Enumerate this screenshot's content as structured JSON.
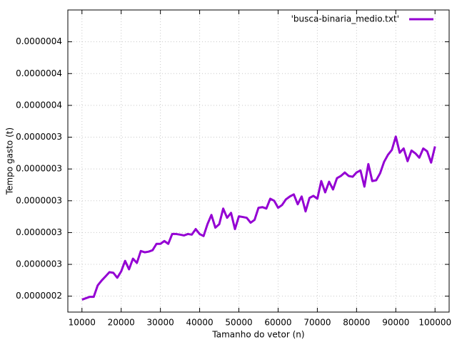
{
  "chart_data": {
    "type": "line",
    "xlabel": "Tamanho do vetor (n)",
    "ylabel": "Tempo gasto (t)",
    "x": [
      10000,
      11000,
      12000,
      13000,
      14000,
      15000,
      16000,
      17000,
      18000,
      19000,
      20000,
      21000,
      22000,
      23000,
      24000,
      25000,
      26000,
      27000,
      28000,
      29000,
      30000,
      31000,
      32000,
      33000,
      34000,
      35000,
      36000,
      37000,
      38000,
      39000,
      40000,
      41000,
      42000,
      43000,
      44000,
      45000,
      46000,
      47000,
      48000,
      49000,
      50000,
      51000,
      52000,
      53000,
      54000,
      55000,
      56000,
      57000,
      58000,
      59000,
      60000,
      61000,
      62000,
      63000,
      64000,
      65000,
      66000,
      67000,
      68000,
      69000,
      70000,
      71000,
      72000,
      73000,
      74000,
      75000,
      76000,
      77000,
      78000,
      79000,
      80000,
      81000,
      82000,
      83000,
      84000,
      85000,
      86000,
      87000,
      88000,
      89000,
      90000,
      91000,
      92000,
      93000,
      94000,
      95000,
      96000,
      97000,
      98000,
      99000,
      100000
    ],
    "series": [
      {
        "name": "'busca-binaria_medio.txt'",
        "color": "#9400d3",
        "values": [
          2.378e-07,
          2.387e-07,
          2.396e-07,
          2.396e-07,
          2.467e-07,
          2.498e-07,
          2.524e-07,
          2.551e-07,
          2.547e-07,
          2.516e-07,
          2.556e-07,
          2.622e-07,
          2.569e-07,
          2.636e-07,
          2.609e-07,
          2.684e-07,
          2.676e-07,
          2.68e-07,
          2.689e-07,
          2.729e-07,
          2.729e-07,
          2.747e-07,
          2.729e-07,
          2.791e-07,
          2.791e-07,
          2.787e-07,
          2.782e-07,
          2.791e-07,
          2.787e-07,
          2.822e-07,
          2.791e-07,
          2.778e-07,
          2.853e-07,
          2.911e-07,
          2.831e-07,
          2.853e-07,
          2.951e-07,
          2.893e-07,
          2.924e-07,
          2.822e-07,
          2.902e-07,
          2.898e-07,
          2.893e-07,
          2.862e-07,
          2.88e-07,
          2.956e-07,
          2.96e-07,
          2.951e-07,
          3.013e-07,
          3e-07,
          2.956e-07,
          2.973e-07,
          3.009e-07,
          3.027e-07,
          3.04e-07,
          2.978e-07,
          3.027e-07,
          2.933e-07,
          3.018e-07,
          3.031e-07,
          3.013e-07,
          3.124e-07,
          3.053e-07,
          3.12e-07,
          3.071e-07,
          3.142e-07,
          3.156e-07,
          3.178e-07,
          3.156e-07,
          3.151e-07,
          3.178e-07,
          3.191e-07,
          3.089e-07,
          3.231e-07,
          3.124e-07,
          3.129e-07,
          3.173e-07,
          3.244e-07,
          3.289e-07,
          3.32e-07,
          3.404e-07,
          3.302e-07,
          3.329e-07,
          3.249e-07,
          3.316e-07,
          3.298e-07,
          3.271e-07,
          3.329e-07,
          3.311e-07,
          3.24e-07,
          3.342e-07
        ]
      }
    ],
    "xlim": [
      6400,
      103600
    ],
    "xticks": [
      10000,
      20000,
      30000,
      40000,
      50000,
      60000,
      70000,
      80000,
      90000,
      100000
    ],
    "ylim": [
      2.3e-07,
      4.2e-07
    ],
    "yticks": [
      {
        "value": 2.4e-07,
        "label": "0.0000002"
      },
      {
        "value": 2.6e-07,
        "label": "0.0000003"
      },
      {
        "value": 2.8e-07,
        "label": "0.0000003"
      },
      {
        "value": 3e-07,
        "label": "0.0000003"
      },
      {
        "value": 3.2e-07,
        "label": "0.0000003"
      },
      {
        "value": 3.4e-07,
        "label": "0.0000003"
      },
      {
        "value": 3.6e-07,
        "label": "0.0000004"
      },
      {
        "value": 3.8e-07,
        "label": "0.0000004"
      },
      {
        "value": 4e-07,
        "label": "0.0000004"
      }
    ],
    "grid": true,
    "legend": "top-right"
  }
}
